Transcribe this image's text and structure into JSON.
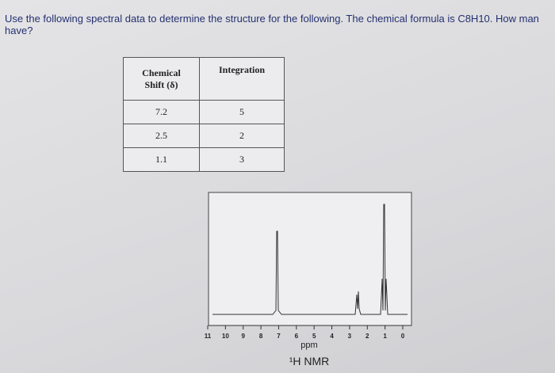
{
  "question": {
    "lines": [
      "Use the following spectral data to determine the structure for the following. The chemical formula is C8H10. How man",
      "have?"
    ]
  },
  "table": {
    "header": [
      "Chemical Shift (δ)",
      "Integration"
    ],
    "rows": [
      [
        "7.2",
        "5"
      ],
      [
        "2.5",
        "2"
      ],
      [
        "1.1",
        "3"
      ]
    ]
  },
  "spectrum": {
    "xticks": [
      11,
      10,
      9,
      8,
      7,
      6,
      5,
      4,
      3,
      2,
      1,
      0
    ],
    "xlabel": "ppm",
    "title": "¹H NMR"
  }
}
